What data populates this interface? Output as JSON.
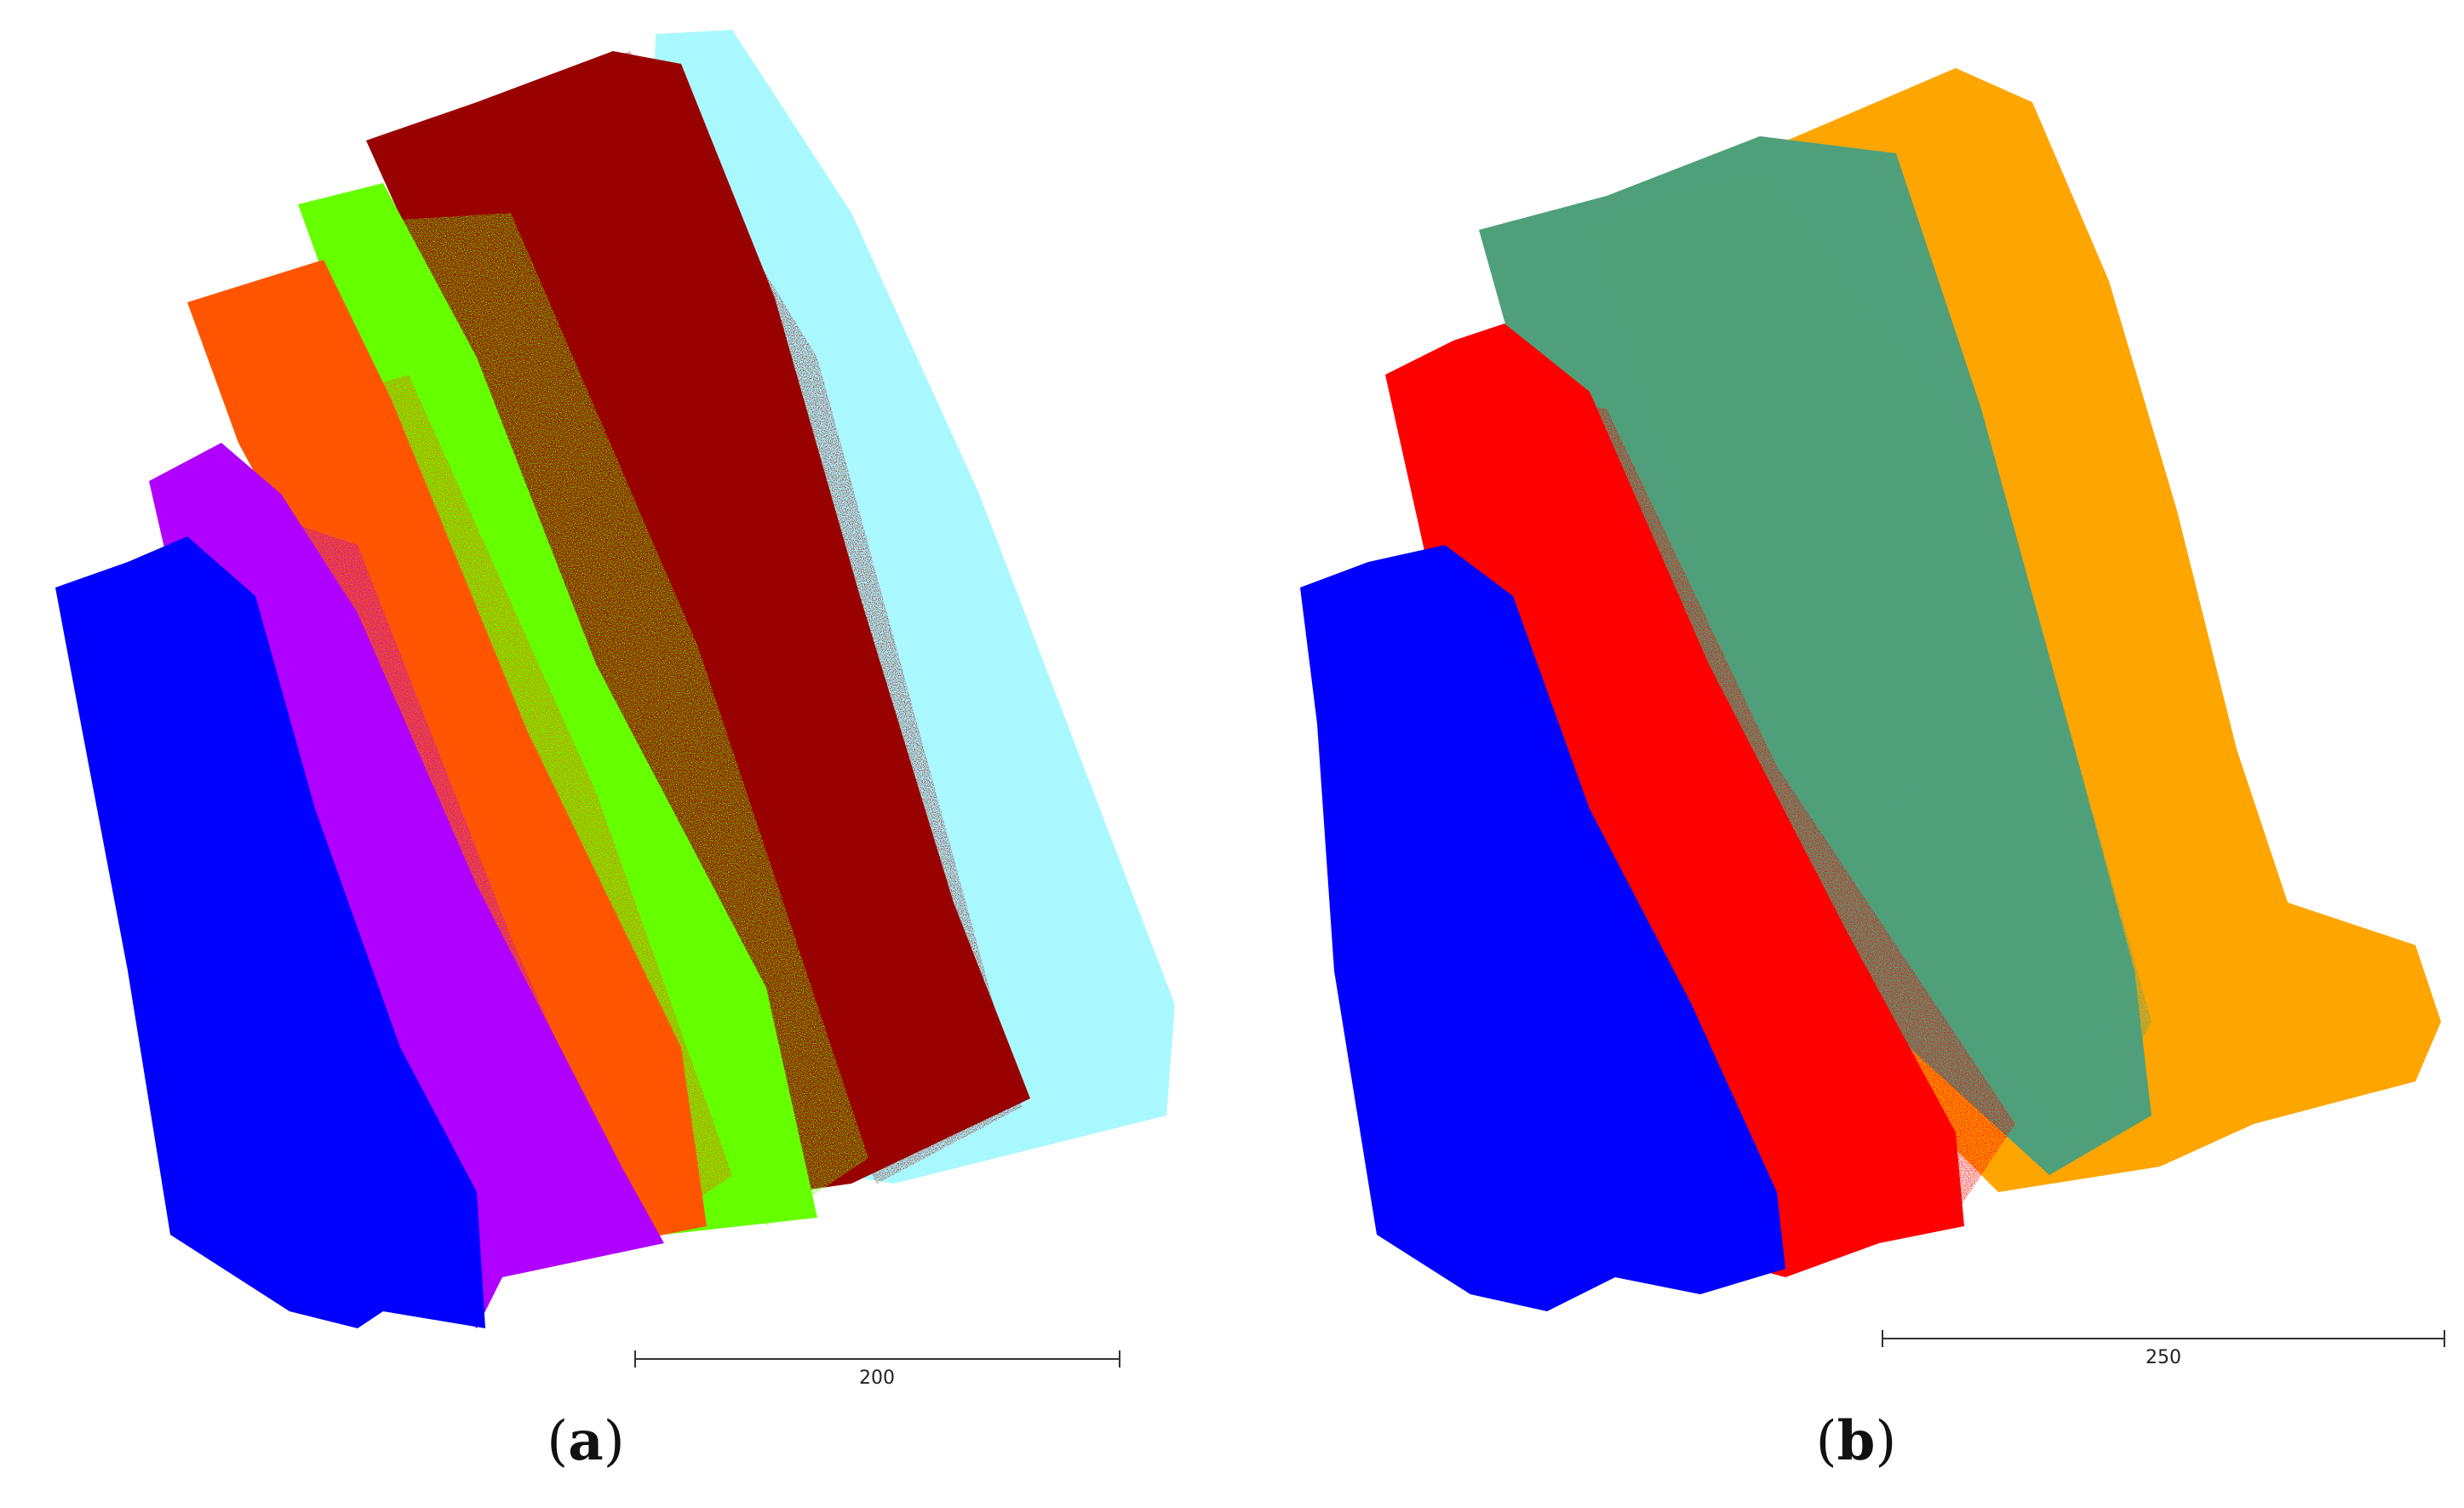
{
  "panels": [
    {
      "label_open": "(",
      "label_letter": "a",
      "label_close": ")",
      "scale_bar_value": "200",
      "colors": [
        "#0000ff",
        "#b000ff",
        "#ff5500",
        "#66ff00",
        "#990000",
        "#aaf8ff"
      ]
    },
    {
      "label_open": "(",
      "label_letter": "b",
      "label_close": ")",
      "scale_bar_value": "250",
      "colors": [
        "#0000ff",
        "#ff0000",
        "#4fa07a",
        "#ffa500"
      ]
    }
  ]
}
